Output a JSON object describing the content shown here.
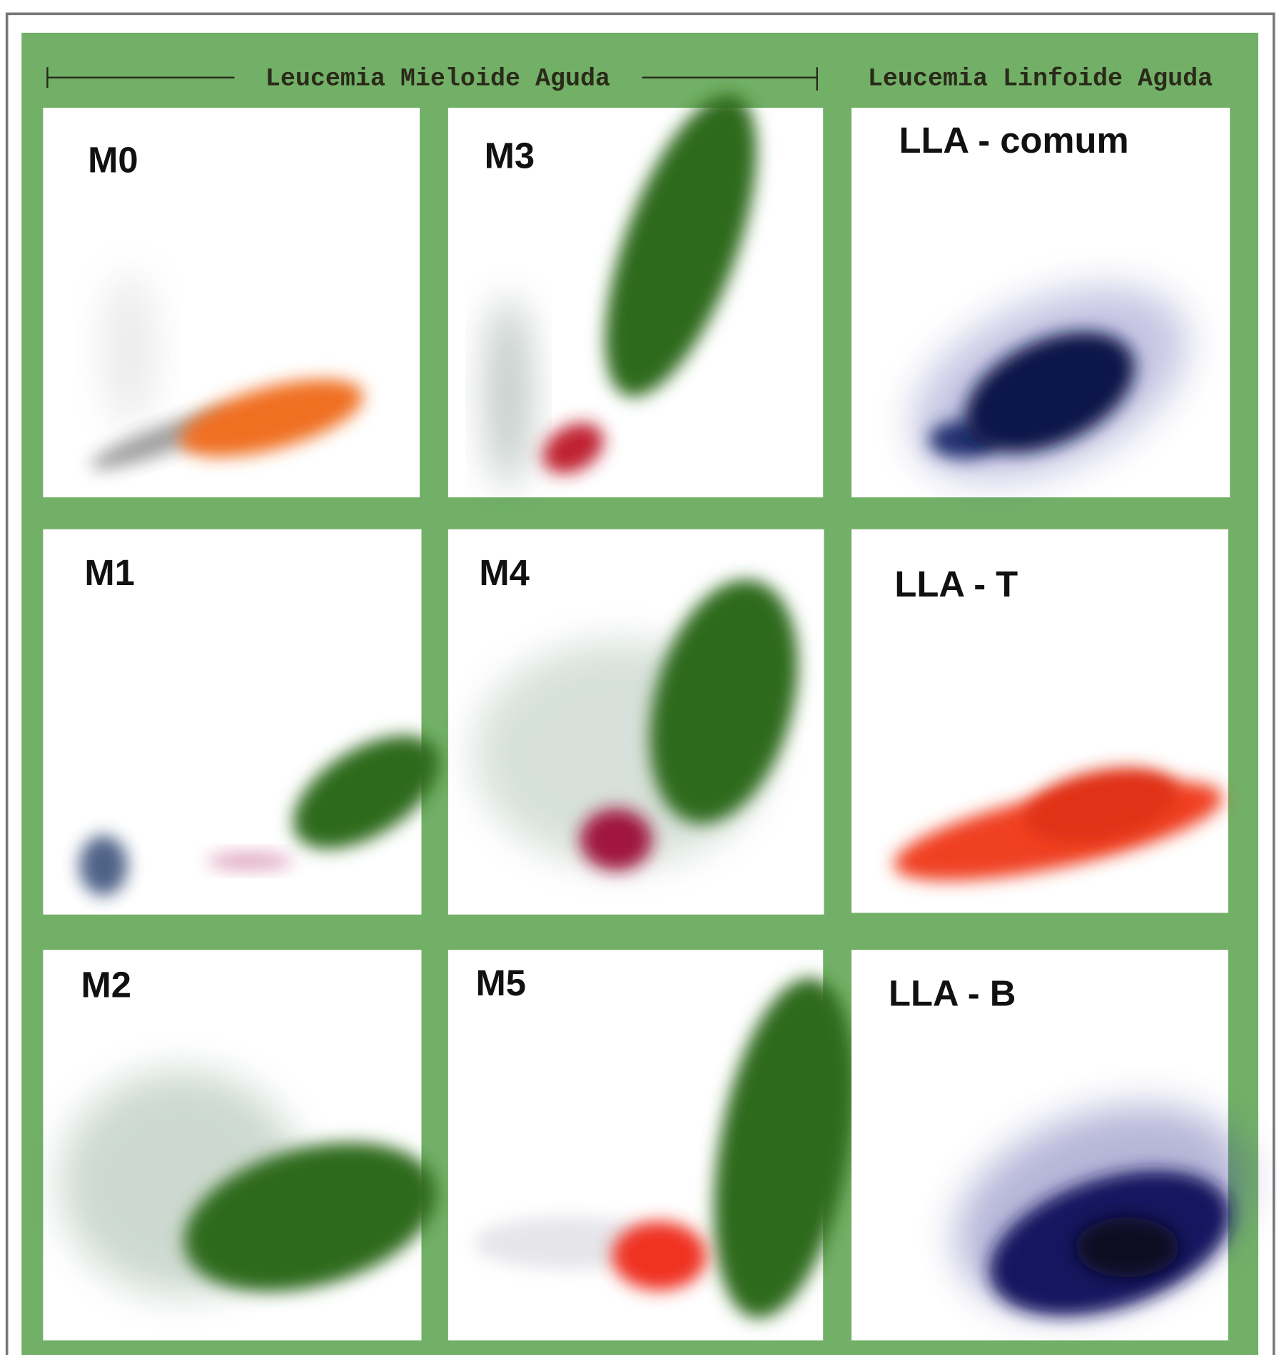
{
  "header": {
    "myeloid": "Leucemia Mieloide Aguda",
    "lymphoid": "Leucemia Linfoide Aguda"
  },
  "panels": [
    {
      "label": "M0"
    },
    {
      "label": "M3"
    },
    {
      "label": "LLA - comum"
    },
    {
      "label": "M1"
    },
    {
      "label": "M4"
    },
    {
      "label": "LLA - T"
    },
    {
      "label": "M2"
    },
    {
      "label": "M5"
    },
    {
      "label": "LLA - B"
    }
  ]
}
